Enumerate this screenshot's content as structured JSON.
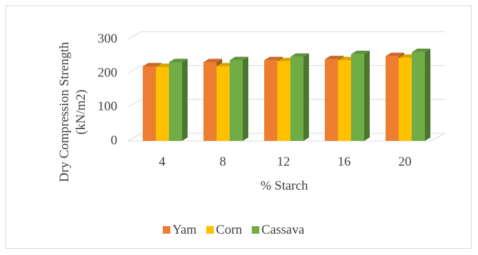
{
  "chart_data": {
    "type": "bar",
    "style": "3d-clustered-column",
    "categories": [
      "4",
      "8",
      "12",
      "16",
      "20"
    ],
    "series": [
      {
        "name": "Yam",
        "values": [
          220,
          232,
          238,
          241,
          250
        ],
        "color": "#ed7d31"
      },
      {
        "name": "Corn",
        "values": [
          218,
          220,
          235,
          238,
          245
        ],
        "color": "#ffc000"
      },
      {
        "name": "Cassava",
        "values": [
          232,
          238,
          248,
          256,
          262
        ],
        "color": "#70ad47"
      }
    ],
    "title": "",
    "xlabel": "% Starch",
    "ylabel_lines": [
      "Dry  Compression Strength",
      "(kN/m2)"
    ],
    "ylim": [
      0,
      300
    ],
    "yticks": [
      0,
      100,
      200,
      300
    ],
    "grid": true,
    "legend_position": "bottom"
  }
}
